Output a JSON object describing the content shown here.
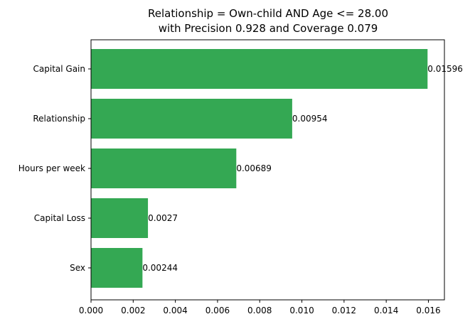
{
  "chart_data": {
    "type": "bar",
    "orientation": "horizontal",
    "title_lines": [
      "Relationship = Own-child AND Age <= 28.00",
      "with Precision 0.928 and Coverage 0.079"
    ],
    "categories": [
      "Capital Gain",
      "Relationship",
      "Hours per week",
      "Capital Loss",
      "Sex"
    ],
    "values": [
      0.01596,
      0.00954,
      0.00689,
      0.0027,
      0.00244
    ],
    "data_labels": [
      "0.01596",
      "0.00954",
      "0.00689",
      "0.0027",
      "0.00244"
    ],
    "x_ticks": [
      "0.000",
      "0.002",
      "0.004",
      "0.006",
      "0.008",
      "0.010",
      "0.012",
      "0.014",
      "0.016"
    ],
    "xlim": [
      0,
      0.01676
    ],
    "bar_color": "#34a853",
    "xlabel": "",
    "ylabel": "",
    "grid": false
  }
}
